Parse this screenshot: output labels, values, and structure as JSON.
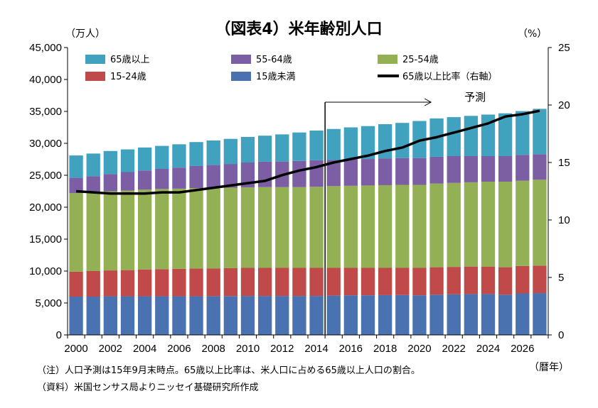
{
  "chart_data": {
    "type": "bar",
    "title": "（図表4）米年齢別人口",
    "y_left_unit": "（万人）",
    "y_right_unit": "（%）",
    "x_unit": "（暦年）",
    "ylim": [
      0,
      45000
    ],
    "y2lim": [
      0,
      25
    ],
    "y_ticks": [
      "0",
      "5,000",
      "10,000",
      "15,000",
      "20,000",
      "25,000",
      "30,000",
      "35,000",
      "40,000",
      "45,000"
    ],
    "y2_ticks": [
      "0",
      "5",
      "10",
      "15",
      "20",
      "25"
    ],
    "x_tick_labels": [
      "2000",
      "2002",
      "2004",
      "2006",
      "2008",
      "2010",
      "2012",
      "2014",
      "2016",
      "2018",
      "2020",
      "2022",
      "2024",
      "2026"
    ],
    "categories": [
      "2000",
      "2001",
      "2002",
      "2003",
      "2004",
      "2005",
      "2006",
      "2007",
      "2008",
      "2009",
      "2010",
      "2011",
      "2012",
      "2013",
      "2014",
      "2015",
      "2016",
      "2017",
      "2018",
      "2019",
      "2020",
      "2021",
      "2022",
      "2023",
      "2024",
      "2025",
      "2026",
      "2027"
    ],
    "series": [
      {
        "name": "15歳未満",
        "color": "#4a72b0",
        "values": [
          6000,
          6000,
          6050,
          6050,
          6050,
          6050,
          6050,
          6050,
          6070,
          6080,
          6100,
          6100,
          6100,
          6100,
          6100,
          6150,
          6200,
          6200,
          6230,
          6250,
          6200,
          6300,
          6350,
          6400,
          6400,
          6300,
          6500,
          6550
        ]
      },
      {
        "name": "15-24歳",
        "color": "#bf4a49",
        "values": [
          3900,
          4000,
          4050,
          4100,
          4200,
          4250,
          4300,
          4350,
          4350,
          4370,
          4400,
          4400,
          4400,
          4400,
          4400,
          4350,
          4300,
          4300,
          4270,
          4250,
          4300,
          4300,
          4300,
          4300,
          4300,
          4300,
          4300,
          4300
        ]
      },
      {
        "name": "25-54歳",
        "color": "#94b054",
        "values": [
          12300,
          12350,
          12400,
          12450,
          12500,
          12550,
          12550,
          12600,
          12580,
          12600,
          12600,
          12650,
          12650,
          12650,
          12700,
          12800,
          12850,
          12900,
          12950,
          13000,
          13000,
          13100,
          13150,
          13200,
          13300,
          13400,
          13350,
          13450
        ]
      },
      {
        "name": "55-64歳",
        "color": "#7b5ea3",
        "values": [
          2400,
          2500,
          2700,
          2900,
          3000,
          3150,
          3300,
          3450,
          3600,
          3720,
          3900,
          3980,
          4000,
          4100,
          4150,
          4100,
          4150,
          4150,
          4200,
          4200,
          4200,
          4200,
          4200,
          4100,
          4000,
          4000,
          4050,
          4000
        ]
      },
      {
        "name": "65歳以上",
        "color": "#40a2bf",
        "values": [
          3500,
          3550,
          3600,
          3550,
          3600,
          3600,
          3650,
          3750,
          3850,
          3930,
          4000,
          4070,
          4250,
          4450,
          4650,
          4850,
          5000,
          5150,
          5350,
          5500,
          5800,
          6000,
          6100,
          6300,
          6500,
          6700,
          6850,
          7100
        ]
      }
    ],
    "line_series": {
      "name": "65歳以上比率（右軸）",
      "color": "#000000",
      "axis": "right",
      "values": [
        12.5,
        12.4,
        12.3,
        12.3,
        12.3,
        12.4,
        12.4,
        12.6,
        12.8,
        13.0,
        13.2,
        13.4,
        13.9,
        14.3,
        14.6,
        15.0,
        15.3,
        15.6,
        16.0,
        16.3,
        16.9,
        17.2,
        17.6,
        18.0,
        18.4,
        19.0,
        19.2,
        19.5
      ]
    },
    "annotation": {
      "text": "予測",
      "start_year": "2014"
    },
    "legend": [
      {
        "name": "65歳以上",
        "kind": "box",
        "color": "#40a2bf"
      },
      {
        "name": "55-64歳",
        "kind": "box",
        "color": "#7b5ea3"
      },
      {
        "name": "25-54歳",
        "kind": "box",
        "color": "#94b054"
      },
      {
        "name": "15-24歳",
        "kind": "box",
        "color": "#bf4a49"
      },
      {
        "name": "15歳未満",
        "kind": "box",
        "color": "#4a72b0"
      },
      {
        "name": "65歳以上比率（右軸）",
        "kind": "line",
        "color": "#000000"
      }
    ],
    "legend_placement": "top-left",
    "grid": false
  },
  "notes": {
    "line1": "（注）人口予測は15年9月末時点。65歳以上比率は、米人口に占める65歳以上人口の割合。",
    "line2": "（資料）米国センサス局よりニッセイ基礎研究所作成"
  }
}
